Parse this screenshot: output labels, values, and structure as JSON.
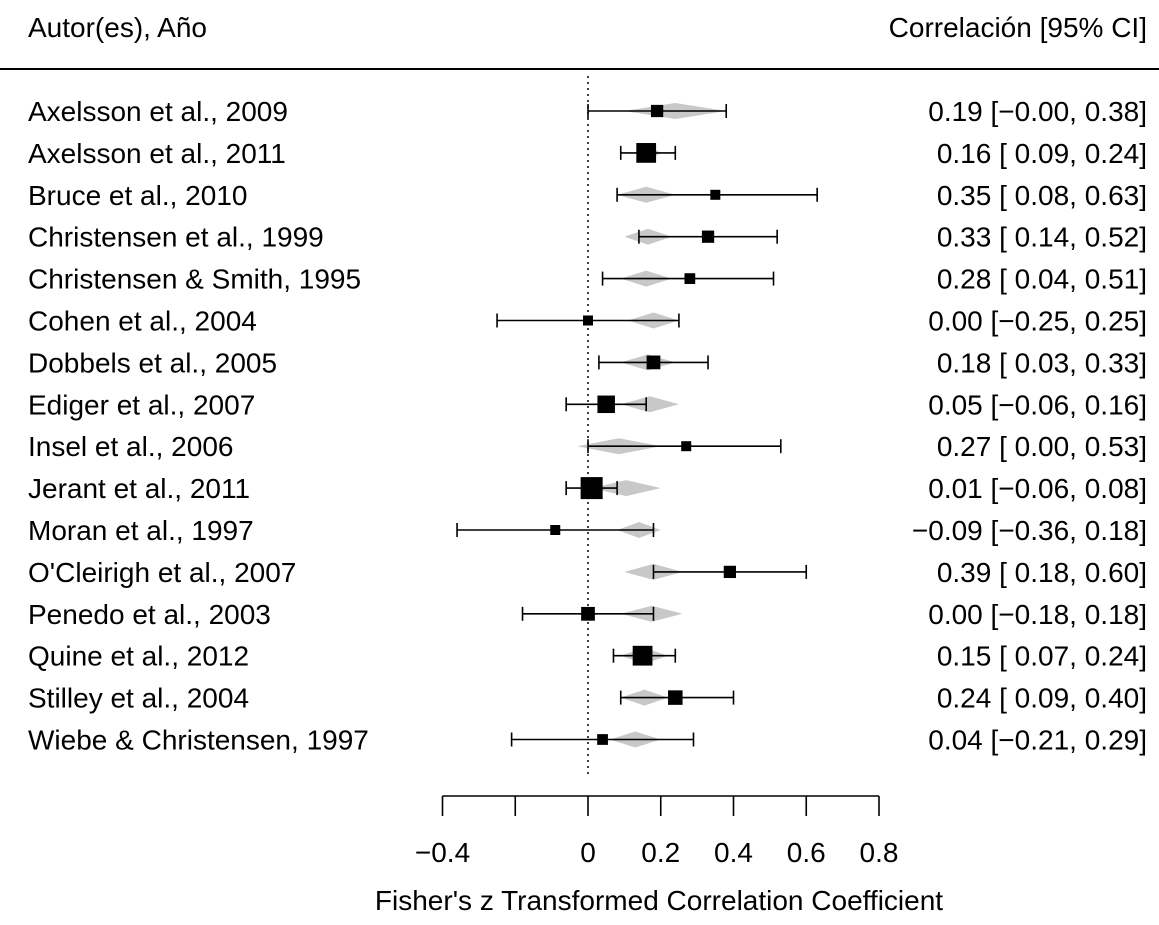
{
  "header": {
    "left_label": "Autor(es), Año",
    "right_label": "Correlación [95% CI]"
  },
  "colors": {
    "point": "#000000",
    "diamond": "#c8c8c8",
    "line": "#000000"
  },
  "chart_data": {
    "type": "forest",
    "xlabel": "Fisher's z Transformed Correlation Coefficient",
    "xlim": [
      -0.4,
      0.8
    ],
    "x_ticks": [
      -0.4,
      -0.2,
      0,
      0.2,
      0.4,
      0.6,
      0.8
    ],
    "x_tick_labels": [
      "−0.4",
      "",
      "0",
      "0.2",
      "0.4",
      "0.6",
      "0.8"
    ],
    "reference_line": 0,
    "studies": [
      {
        "label": "Axelsson et al., 2009",
        "est": 0.19,
        "lo": 0.0,
        "hi": 0.38,
        "weight": 0.35,
        "pred_lo": 0.1,
        "pred_hi": 0.38,
        "text": "0.19 [−0.00, 0.38]"
      },
      {
        "label": "Axelsson et al., 2011",
        "est": 0.16,
        "lo": 0.09,
        "hi": 0.24,
        "weight": 0.85,
        "pred_lo": 0.13,
        "pred_hi": 0.2,
        "text": "0.16 [ 0.09, 0.24]"
      },
      {
        "label": "Bruce et al., 2010",
        "est": 0.35,
        "lo": 0.08,
        "hi": 0.63,
        "weight": 0.2,
        "pred_lo": 0.08,
        "pred_hi": 0.24,
        "text": "0.35 [ 0.08, 0.63]"
      },
      {
        "label": "Christensen et al., 1999",
        "est": 0.33,
        "lo": 0.14,
        "hi": 0.52,
        "weight": 0.35,
        "pred_lo": 0.1,
        "pred_hi": 0.23,
        "text": "0.33 [ 0.14, 0.52]"
      },
      {
        "label": "Christensen & Smith, 1995",
        "est": 0.28,
        "lo": 0.04,
        "hi": 0.51,
        "weight": 0.25,
        "pred_lo": 0.09,
        "pred_hi": 0.23,
        "text": "0.28 [ 0.04, 0.51]"
      },
      {
        "label": "Cohen et al., 2004",
        "est": 0.0,
        "lo": -0.25,
        "hi": 0.25,
        "weight": 0.2,
        "pred_lo": 0.11,
        "pred_hi": 0.25,
        "text": "0.00 [−0.25, 0.25]"
      },
      {
        "label": "Dobbels et al., 2005",
        "est": 0.18,
        "lo": 0.03,
        "hi": 0.33,
        "weight": 0.45,
        "pred_lo": 0.09,
        "pred_hi": 0.24,
        "text": "0.18 [ 0.03, 0.33]"
      },
      {
        "label": "Ediger et al., 2007",
        "est": 0.05,
        "lo": -0.06,
        "hi": 0.16,
        "weight": 0.7,
        "pred_lo": 0.09,
        "pred_hi": 0.25,
        "text": "0.05 [−0.06, 0.16]"
      },
      {
        "label": "Insel et al., 2006",
        "est": 0.27,
        "lo": 0.0,
        "hi": 0.53,
        "weight": 0.2,
        "pred_lo": -0.03,
        "pred_hi": 0.2,
        "text": "0.27 [ 0.00, 0.53]"
      },
      {
        "label": "Jerant et al., 2011",
        "est": 0.01,
        "lo": -0.06,
        "hi": 0.08,
        "weight": 1.0,
        "pred_lo": 0.01,
        "pred_hi": 0.2,
        "text": "0.01 [−0.06, 0.08]"
      },
      {
        "label": "Moran et al., 1997",
        "est": -0.09,
        "lo": -0.36,
        "hi": 0.18,
        "weight": 0.2,
        "pred_lo": 0.08,
        "pred_hi": 0.2,
        "text": "−0.09 [−0.36, 0.18]"
      },
      {
        "label": "O'Cleirigh et al., 2007",
        "est": 0.39,
        "lo": 0.18,
        "hi": 0.6,
        "weight": 0.35,
        "pred_lo": 0.1,
        "pred_hi": 0.26,
        "text": "0.39 [ 0.18, 0.60]"
      },
      {
        "label": "Penedo et al., 2003",
        "est": 0.0,
        "lo": -0.18,
        "hi": 0.18,
        "weight": 0.45,
        "pred_lo": 0.09,
        "pred_hi": 0.26,
        "text": "0.00 [−0.18, 0.18]"
      },
      {
        "label": "Quine et al., 2012",
        "est": 0.15,
        "lo": 0.07,
        "hi": 0.24,
        "weight": 0.85,
        "pred_lo": 0.09,
        "pred_hi": 0.22,
        "text": "0.15 [ 0.07, 0.24]"
      },
      {
        "label": "Stilley et al., 2004",
        "est": 0.24,
        "lo": 0.09,
        "hi": 0.4,
        "weight": 0.5,
        "pred_lo": 0.09,
        "pred_hi": 0.22,
        "text": "0.24 [ 0.09, 0.40]"
      },
      {
        "label": "Wiebe & Christensen, 1997",
        "est": 0.04,
        "lo": -0.21,
        "hi": 0.29,
        "weight": 0.25,
        "pred_lo": 0.06,
        "pred_hi": 0.2,
        "text": "0.04 [−0.21, 0.29]"
      }
    ]
  }
}
